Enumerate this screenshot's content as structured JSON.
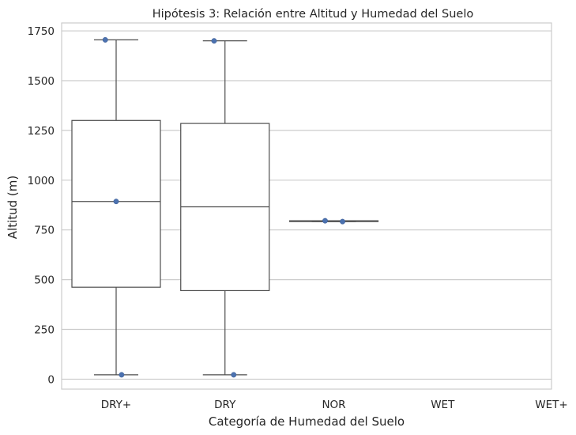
{
  "chart_data": {
    "type": "box",
    "title": "Hipótesis 3: Relación entre Altitud y Humedad del Suelo",
    "xlabel": "Categoría de Humedad del Suelo",
    "ylabel": "Altitud (m)",
    "categories": [
      "DRY+",
      "DRY",
      "NOR",
      "WET",
      "WET+"
    ],
    "ylim": [
      -50,
      1790
    ],
    "yticks": [
      0,
      250,
      500,
      750,
      1000,
      1250,
      1500,
      1750
    ],
    "grid": "horizontal",
    "legend": "none",
    "colors": {
      "box_edge": "#4d4d4d",
      "point": "#4c72b0",
      "grid": "#cccccc",
      "frame": "#cccccc"
    },
    "boxes": [
      {
        "category": "DRY+",
        "whisker_low": 22,
        "q1": 462,
        "median": 893,
        "q3": 1300,
        "whisker_high": 1705
      },
      {
        "category": "DRY",
        "whisker_low": 22,
        "q1": 445,
        "median": 866,
        "q3": 1285,
        "whisker_high": 1700
      },
      {
        "category": "NOR",
        "whisker_low": 792,
        "q1": 792,
        "median": 794,
        "q3": 796,
        "whisker_high": 796
      }
    ],
    "points": [
      {
        "category": "DRY+",
        "offset": -0.1,
        "y": 1705
      },
      {
        "category": "DRY+",
        "offset": 0.0,
        "y": 893
      },
      {
        "category": "DRY+",
        "offset": 0.05,
        "y": 22
      },
      {
        "category": "DRY",
        "offset": -0.1,
        "y": 1700
      },
      {
        "category": "DRY",
        "offset": 0.08,
        "y": 22
      },
      {
        "category": "NOR",
        "offset": -0.08,
        "y": 796
      },
      {
        "category": "NOR",
        "offset": 0.08,
        "y": 792
      }
    ]
  }
}
